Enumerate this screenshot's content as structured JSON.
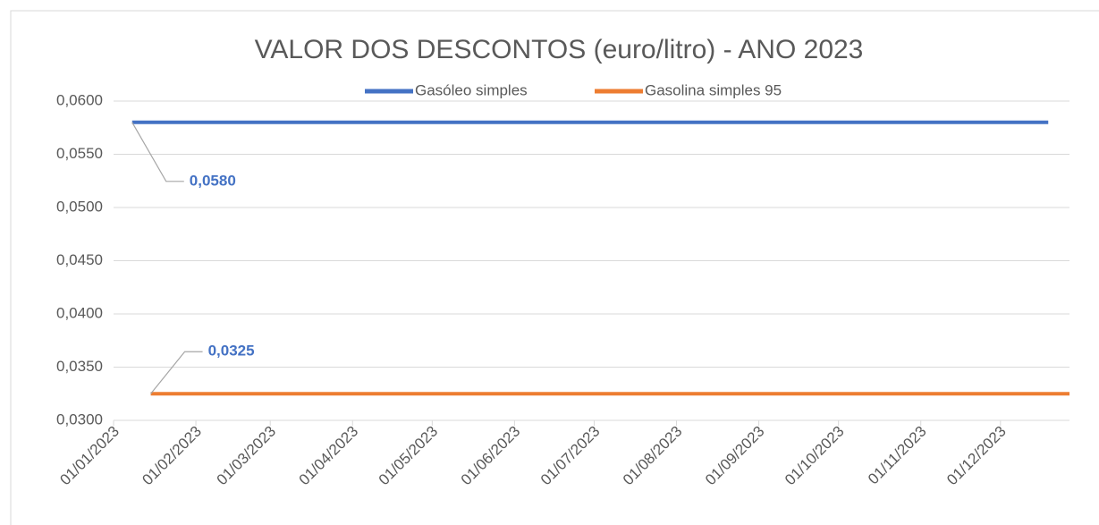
{
  "chart_data": {
    "type": "line",
    "title": "VALOR DOS DESCONTOS (euro/litro) - ANO 2023",
    "xlim": [
      "01/01/2023",
      "27/12/2023"
    ],
    "xticks": [
      "01/01/2023",
      "01/02/2023",
      "01/03/2023",
      "01/04/2023",
      "01/05/2023",
      "01/06/2023",
      "01/07/2023",
      "01/08/2023",
      "01/09/2023",
      "01/10/2023",
      "01/11/2023",
      "01/12/2023"
    ],
    "ylim": [
      0.03,
      0.06
    ],
    "yticks": [
      {
        "value": 0.03,
        "label": "0,0300"
      },
      {
        "value": 0.035,
        "label": "0,0350"
      },
      {
        "value": 0.04,
        "label": "0,0400"
      },
      {
        "value": 0.045,
        "label": "0,0450"
      },
      {
        "value": 0.05,
        "label": "0,0500"
      },
      {
        "value": 0.055,
        "label": "0,0550"
      },
      {
        "value": 0.06,
        "label": "0,0600"
      }
    ],
    "grid": true,
    "legend": "top",
    "series": [
      {
        "name": "Gasóleo simples",
        "color": "#4472c4",
        "x": [
          "08/01/2023",
          "19/12/2023"
        ],
        "values": [
          0.058,
          0.058
        ],
        "value_labels": [
          "0,0580",
          null
        ]
      },
      {
        "name": "Gasolina simples 95",
        "color": "#ed7d31",
        "x": [
          "15/01/2023",
          "27/12/2023"
        ],
        "values": [
          0.0325,
          0.0325
        ],
        "value_labels": [
          "0,0325",
          null
        ]
      }
    ]
  }
}
